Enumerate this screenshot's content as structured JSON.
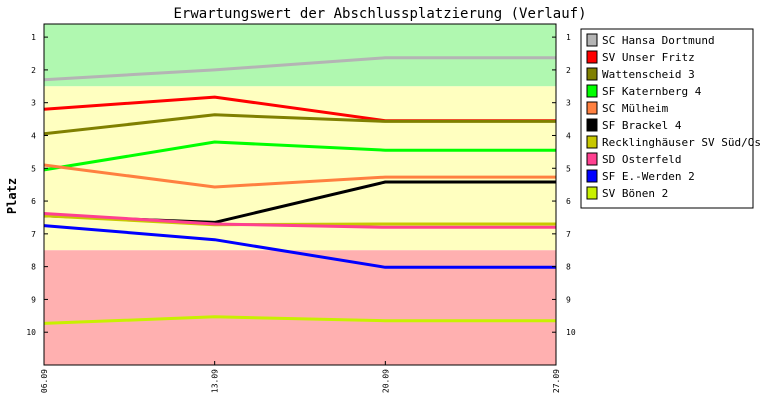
{
  "chart_data": {
    "type": "line",
    "title": "Erwartungswert der Abschlussplatzierung (Verlauf)",
    "ylabel": "Platz",
    "xlabel": "",
    "x": [
      "06.09",
      "13.09",
      "20.09",
      "27.09"
    ],
    "y_ticks": [
      "1",
      "2",
      "3",
      "4",
      "5",
      "6",
      "7",
      "8",
      "9",
      "10"
    ],
    "ylim": [
      0.6,
      11.0
    ],
    "y_inverted": true,
    "bands": [
      {
        "from": 0.6,
        "to": 2.5,
        "color": "#b0f8b0"
      },
      {
        "from": 2.5,
        "to": 7.5,
        "color": "#ffffc0"
      },
      {
        "from": 7.5,
        "to": 11.0,
        "color": "#ffb0b0"
      }
    ],
    "legend_position": "right",
    "series": [
      {
        "name": "SC Hansa Dortmund",
        "color": "#b4b4b4",
        "values": [
          2.3,
          2.0,
          1.63,
          1.63
        ]
      },
      {
        "name": "SV Unser Fritz",
        "color": "#ff0000",
        "values": [
          3.2,
          2.83,
          3.55,
          3.55
        ]
      },
      {
        "name": "Wattenscheid 3",
        "color": "#808000",
        "values": [
          3.95,
          3.37,
          3.57,
          3.57
        ]
      },
      {
        "name": "SF Katernberg 4",
        "color": "#00ff00",
        "values": [
          5.05,
          4.2,
          4.45,
          4.45
        ]
      },
      {
        "name": "SC Mülheim",
        "color": "#ff8040",
        "values": [
          4.9,
          5.57,
          5.27,
          5.27
        ]
      },
      {
        "name": "SF Brackel 4",
        "color": "#000000",
        "values": [
          6.45,
          6.65,
          5.42,
          5.42
        ]
      },
      {
        "name": "Recklinghäuser SV Süd/Ost",
        "color": "#c8c800",
        "values": [
          6.45,
          6.72,
          6.7,
          6.7
        ]
      },
      {
        "name": "SD Osterfeld",
        "color": "#ff4090",
        "values": [
          6.38,
          6.7,
          6.8,
          6.8
        ]
      },
      {
        "name": "SF E.-Werden 2",
        "color": "#0000ff",
        "values": [
          6.75,
          7.18,
          8.02,
          8.02
        ]
      },
      {
        "name": "SV Bönen 2",
        "color": "#c8f000",
        "values": [
          9.73,
          9.53,
          9.65,
          9.65
        ]
      }
    ]
  }
}
